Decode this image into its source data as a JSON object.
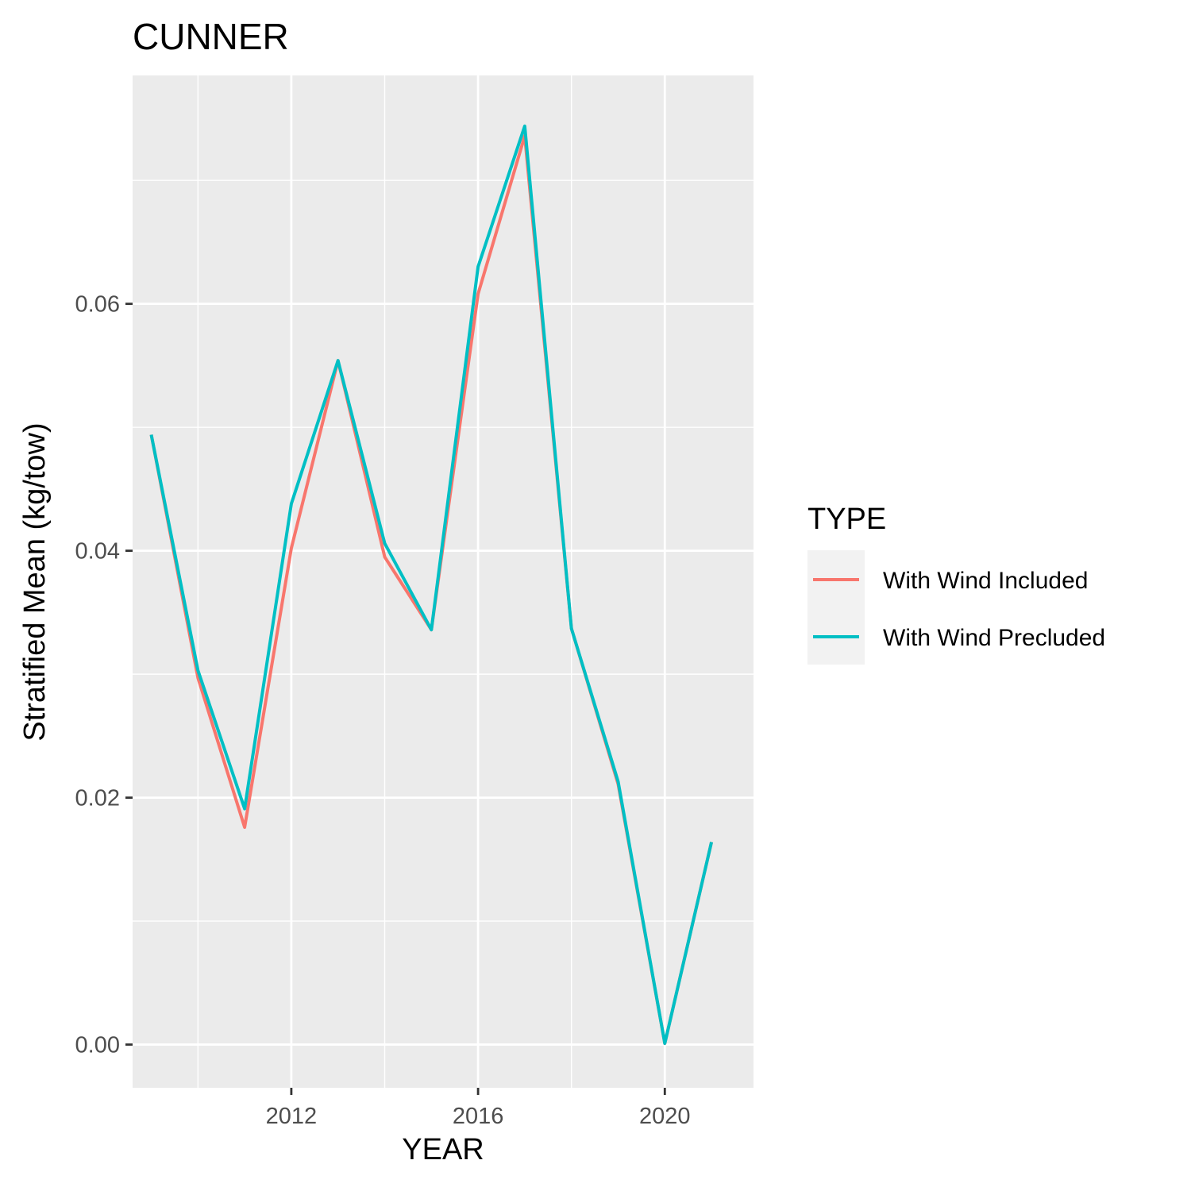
{
  "chart_data": {
    "type": "line",
    "title": "CUNNER",
    "xlabel": "YEAR",
    "ylabel": "Stratified Mean (kg/tow)",
    "x": [
      2009,
      2010,
      2011,
      2012,
      2013,
      2014,
      2015,
      2016,
      2017,
      2018,
      2019,
      2020,
      2021
    ],
    "xlim": [
      2008.6,
      2021.9
    ],
    "ylim": [
      -0.0035,
      0.0785
    ],
    "x_ticks": [
      2012,
      2016,
      2020
    ],
    "x_tick_labels": [
      "2012",
      "2016",
      "2020"
    ],
    "y_ticks": [
      0.0,
      0.02,
      0.04,
      0.06
    ],
    "y_tick_labels": [
      "0.00",
      "0.02",
      "0.04",
      "0.06"
    ],
    "grid": true,
    "legend": {
      "title": "TYPE",
      "placement": "right"
    },
    "series": [
      {
        "name": "With Wind Included",
        "color": "#F8766D",
        "values": [
          0.0494,
          0.0297,
          0.0176,
          0.0402,
          0.0554,
          0.0395,
          0.0336,
          0.0608,
          0.0736,
          0.0337,
          0.0211,
          0.0001,
          0.0164
        ]
      },
      {
        "name": "With Wind Precluded",
        "color": "#00BFC4",
        "values": [
          0.0494,
          0.0303,
          0.0191,
          0.0438,
          0.0554,
          0.0406,
          0.0336,
          0.063,
          0.0744,
          0.0337,
          0.0213,
          0.0001,
          0.0164
        ]
      }
    ]
  }
}
